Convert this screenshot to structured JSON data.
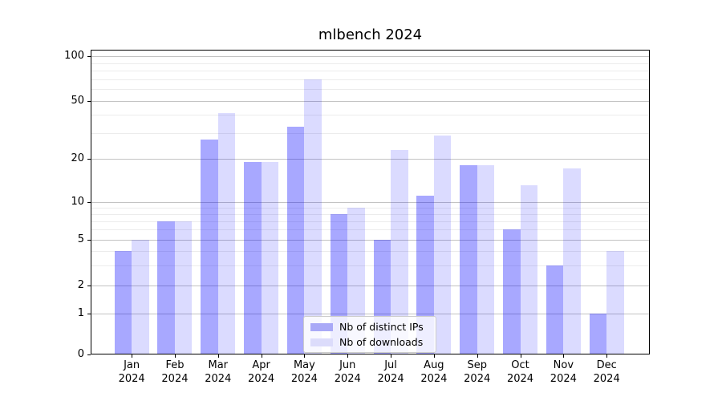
{
  "chart_data": {
    "type": "bar",
    "title": "mlbench 2024",
    "x_year": "2024",
    "categories": [
      "Jan",
      "Feb",
      "Mar",
      "Apr",
      "May",
      "Jun",
      "Jul",
      "Aug",
      "Sep",
      "Oct",
      "Nov",
      "Dec"
    ],
    "series": [
      {
        "name": "Nb of distinct IPs",
        "key": "distinct-ips",
        "color": "rgba(0,0,255,0.34)",
        "legend_color": "#a9a9f7",
        "values": [
          4,
          7,
          27,
          19,
          33,
          8,
          5,
          11,
          18,
          6,
          3,
          1
        ]
      },
      {
        "name": "Nb of downloads",
        "key": "downloads",
        "color": "rgba(0,0,255,0.14)",
        "legend_color": "#dcdcfb",
        "values": [
          5,
          7,
          41,
          19,
          70,
          9,
          23,
          29,
          18,
          13,
          17,
          4
        ]
      }
    ],
    "y_axis": {
      "scale": "symlog",
      "major_ticks": [
        0,
        1,
        2,
        5,
        10,
        20,
        50,
        100
      ],
      "minor_gridlines": [
        3,
        4,
        6,
        7,
        8,
        9,
        30,
        40,
        60,
        70,
        80,
        90
      ],
      "ylim": [
        0,
        111
      ]
    },
    "legend": {
      "position": "lower-center",
      "frame": true
    },
    "grid": "on"
  }
}
